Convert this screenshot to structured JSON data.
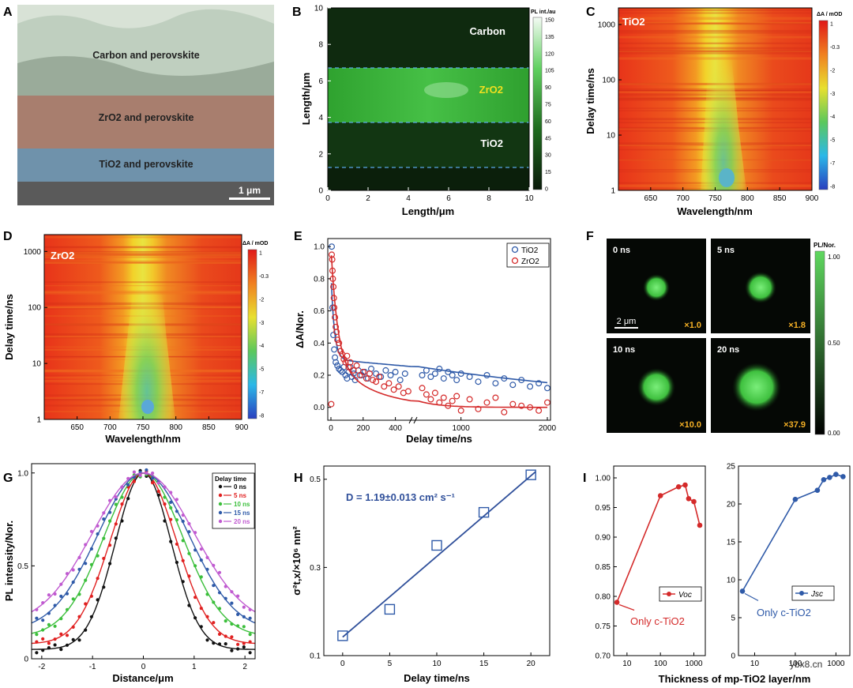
{
  "colors": {
    "pl_green": "#4fd04f",
    "heat_red": "#e23a18",
    "tio2_blue": "#2f5aa8",
    "zro2_red": "#d42a2a",
    "annot_orange": "#f5b025",
    "annot_yellow": "#f0e020",
    "eq_blue": "#2f4f9a"
  },
  "panels": {
    "A": "A",
    "B": "B",
    "C": "C",
    "D": "D",
    "E": "E",
    "F": "F",
    "G": "G",
    "H": "H",
    "I": "I"
  },
  "panel_a": {
    "layer_carbon": "Carbon and perovskite",
    "layer_zro2": "ZrO2 and perovskite",
    "layer_tio2": "TiO2 and perovskite",
    "scale_bar": "1 μm"
  },
  "panel_b": {
    "xlabel": "Length/μm",
    "ylabel": "Length/μm",
    "cbar_title": "PL int./au",
    "cbar_ticks": [
      "150",
      "135",
      "120",
      "105",
      "90",
      "75",
      "60",
      "45",
      "30",
      "15",
      "0"
    ],
    "xticks": [
      "0",
      "2",
      "4",
      "6",
      "8",
      "10"
    ],
    "yticks": [
      "0",
      "2",
      "4",
      "6",
      "8",
      "10"
    ],
    "label_carbon": "Carbon",
    "label_zro2": "ZrO2",
    "label_tio2": "TiO2"
  },
  "panel_c": {
    "xlabel": "Wavelength/nm",
    "ylabel": "Delay time/ns",
    "tag": "TiO2",
    "cbar_title": "ΔA / mOD",
    "cbar_ticks": [
      "1",
      "-0.3",
      "-2",
      "-3",
      "-4",
      "-5",
      "-7",
      "-8"
    ],
    "xticks": [
      "650",
      "700",
      "750",
      "800",
      "850",
      "900"
    ],
    "yticks": [
      "1",
      "10",
      "100",
      "1000"
    ]
  },
  "panel_d": {
    "xlabel": "Wavelength/nm",
    "ylabel": "Delay time/ns",
    "tag": "ZrO2",
    "cbar_title": "ΔA / mOD",
    "cbar_ticks": [
      "1",
      "-0.3",
      "-2",
      "-3",
      "-4",
      "-5",
      "-7",
      "-8"
    ],
    "xticks": [
      "650",
      "700",
      "750",
      "800",
      "850",
      "900"
    ],
    "yticks": [
      "1",
      "10",
      "100",
      "1000"
    ]
  },
  "panel_f": {
    "cbar_title": "PL/Nor.",
    "cbar_ticks": [
      "1.00",
      "0.50",
      "0.00"
    ],
    "scale_bar": "2 μm",
    "frames": [
      {
        "time": "0 ns",
        "mult": "×1.0"
      },
      {
        "time": "5 ns",
        "mult": "×1.8"
      },
      {
        "time": "10 ns",
        "mult": "×10.0"
      },
      {
        "time": "20 ns",
        "mult": "×37.9"
      }
    ]
  },
  "chart_data": [
    {
      "id": "E",
      "type": "scatter",
      "title": "",
      "xlabel": "Delay time/ns",
      "ylabel": "ΔA/Nor.",
      "legend": [
        "TiO2",
        "ZrO2"
      ],
      "legend_position": "top-right",
      "xticks": [
        "0",
        "200",
        "400",
        "1000",
        "2000"
      ],
      "yticks": [
        "0.0",
        "0.2",
        "0.4",
        "0.6",
        "0.8",
        "1.0"
      ],
      "xlim_segments": [
        [
          0,
          500
        ],
        [
          500,
          2000
        ]
      ],
      "ylim": [
        -0.08,
        1.05
      ],
      "series": [
        {
          "name": "TiO2",
          "color": "#2f5aa8",
          "fit": {
            "a1": 0.55,
            "t1": 20,
            "a2": 0.3,
            "t2": 3000
          },
          "x": [
            5,
            10,
            15,
            20,
            25,
            30,
            40,
            50,
            60,
            70,
            80,
            90,
            100,
            110,
            120,
            130,
            140,
            150,
            170,
            190,
            210,
            230,
            250,
            280,
            310,
            340,
            370,
            400,
            430,
            460,
            550,
            600,
            650,
            700,
            750,
            800,
            850,
            900,
            950,
            1000,
            1100,
            1200,
            1300,
            1400,
            1500,
            1600,
            1700,
            1800,
            1900,
            2000
          ],
          "y": [
            1.0,
            0.62,
            0.45,
            0.36,
            0.31,
            0.28,
            0.26,
            0.24,
            0.23,
            0.22,
            0.25,
            0.2,
            0.18,
            0.22,
            0.25,
            0.19,
            0.21,
            0.17,
            0.23,
            0.2,
            0.22,
            0.18,
            0.24,
            0.21,
            0.19,
            0.23,
            0.2,
            0.22,
            0.17,
            0.21,
            0.2,
            0.23,
            0.19,
            0.21,
            0.24,
            0.18,
            0.22,
            0.2,
            0.17,
            0.21,
            0.19,
            0.16,
            0.2,
            0.15,
            0.18,
            0.14,
            0.17,
            0.13,
            0.15,
            0.12
          ]
        },
        {
          "name": "ZrO2",
          "color": "#d42a2a",
          "fit": {
            "a1": 0.7,
            "t1": 40,
            "a2": 0.3,
            "t2": 250
          },
          "x": [
            2,
            5,
            8,
            10,
            12,
            15,
            18,
            20,
            25,
            30,
            35,
            40,
            50,
            60,
            70,
            80,
            90,
            100,
            110,
            120,
            140,
            160,
            180,
            200,
            220,
            240,
            260,
            280,
            300,
            330,
            360,
            390,
            420,
            450,
            480,
            550,
            600,
            650,
            700,
            750,
            800,
            850,
            900,
            950,
            1000,
            1100,
            1200,
            1300,
            1400,
            1500,
            1600,
            1700,
            1800,
            1900,
            2000
          ],
          "y": [
            0.02,
            0.95,
            0.92,
            0.85,
            0.8,
            0.75,
            0.68,
            0.62,
            0.56,
            0.5,
            0.47,
            0.42,
            0.4,
            0.35,
            0.33,
            0.3,
            0.28,
            0.32,
            0.25,
            0.28,
            0.23,
            0.26,
            0.2,
            0.22,
            0.18,
            0.21,
            0.17,
            0.16,
            0.19,
            0.13,
            0.15,
            0.11,
            0.13,
            0.09,
            0.1,
            0.12,
            0.08,
            0.05,
            0.09,
            0.03,
            0.06,
            0.01,
            0.04,
            0.07,
            -0.02,
            0.05,
            -0.01,
            0.03,
            0.06,
            -0.03,
            0.02,
            0.01,
            0.0,
            -0.02,
            0.03
          ]
        }
      ]
    },
    {
      "id": "G",
      "type": "line",
      "title": "",
      "xlabel": "Distance/μm",
      "ylabel": "PL intensity/Nor.",
      "legend_title": "Delay time",
      "legend_position": "top-right",
      "xlim": [
        -2.2,
        2.2
      ],
      "ylim": [
        0,
        1.05
      ],
      "xticks": [
        "-2",
        "-1",
        "0",
        "1",
        "2"
      ],
      "yticks": [
        "0",
        "0.5",
        "1.0"
      ],
      "series": [
        {
          "name": "0 ns",
          "sigma": 0.55,
          "offset": 0.05,
          "color": "#111111"
        },
        {
          "name": "5 ns",
          "sigma": 0.65,
          "offset": 0.08,
          "color": "#e02020"
        },
        {
          "name": "10 ns",
          "sigma": 0.78,
          "offset": 0.12,
          "color": "#3cbf3c"
        },
        {
          "name": "15 ns",
          "sigma": 0.9,
          "offset": 0.15,
          "color": "#2f5aa8"
        },
        {
          "name": "20 ns",
          "sigma": 1.0,
          "offset": 0.18,
          "color": "#c05ad0"
        }
      ]
    },
    {
      "id": "H",
      "type": "scatter",
      "title": "",
      "annotation": "D = 1.19±0.013 cm² s⁻¹",
      "xlabel": "Delay time/ns",
      "ylabel": "σ²t,x/×10⁶ nm²",
      "xlim": [
        -2,
        22
      ],
      "ylim": [
        0.1,
        0.53
      ],
      "xticks": [
        "0",
        "5",
        "10",
        "15",
        "20"
      ],
      "yticks": [
        "0.1",
        "0.3",
        "0.5"
      ],
      "x": [
        0,
        5,
        10,
        15,
        20
      ],
      "y": [
        0.145,
        0.205,
        0.35,
        0.425,
        0.51
      ],
      "fit": {
        "slope": 0.0183,
        "intercept": 0.142
      }
    },
    {
      "id": "I",
      "type": "line",
      "xlabel": "Thickness of mp-TiO2 layer/nm",
      "x_log": true,
      "left": {
        "legend": "Voc",
        "annotation": "Only c-TiO2",
        "ylim": [
          0.7,
          1.02
        ],
        "yticks": [
          "0.70",
          "0.75",
          "0.80",
          "0.85",
          "0.90",
          "0.95",
          "1.00"
        ],
        "xticks": [
          "10",
          "100",
          "1000"
        ],
        "x": [
          5,
          100,
          350,
          550,
          700,
          1000,
          1500
        ],
        "y": [
          0.79,
          0.97,
          0.985,
          0.988,
          0.965,
          0.96,
          0.92
        ],
        "color": "#d42a2a"
      },
      "right": {
        "legend": "Jsc",
        "annotation": "Only c-TiO2",
        "ylim": [
          0,
          25
        ],
        "yticks": [
          "0",
          "5",
          "10",
          "15",
          "20",
          "25"
        ],
        "xticks": [
          "10",
          "100",
          "1000"
        ],
        "x": [
          5,
          100,
          350,
          500,
          700,
          1000,
          1500
        ],
        "y": [
          8.5,
          20.6,
          21.8,
          23.2,
          23.5,
          23.9,
          23.6
        ],
        "color": "#2f5aa8"
      }
    },
    {
      "id": "watermark",
      "text": "ybx8.cn"
    }
  ]
}
